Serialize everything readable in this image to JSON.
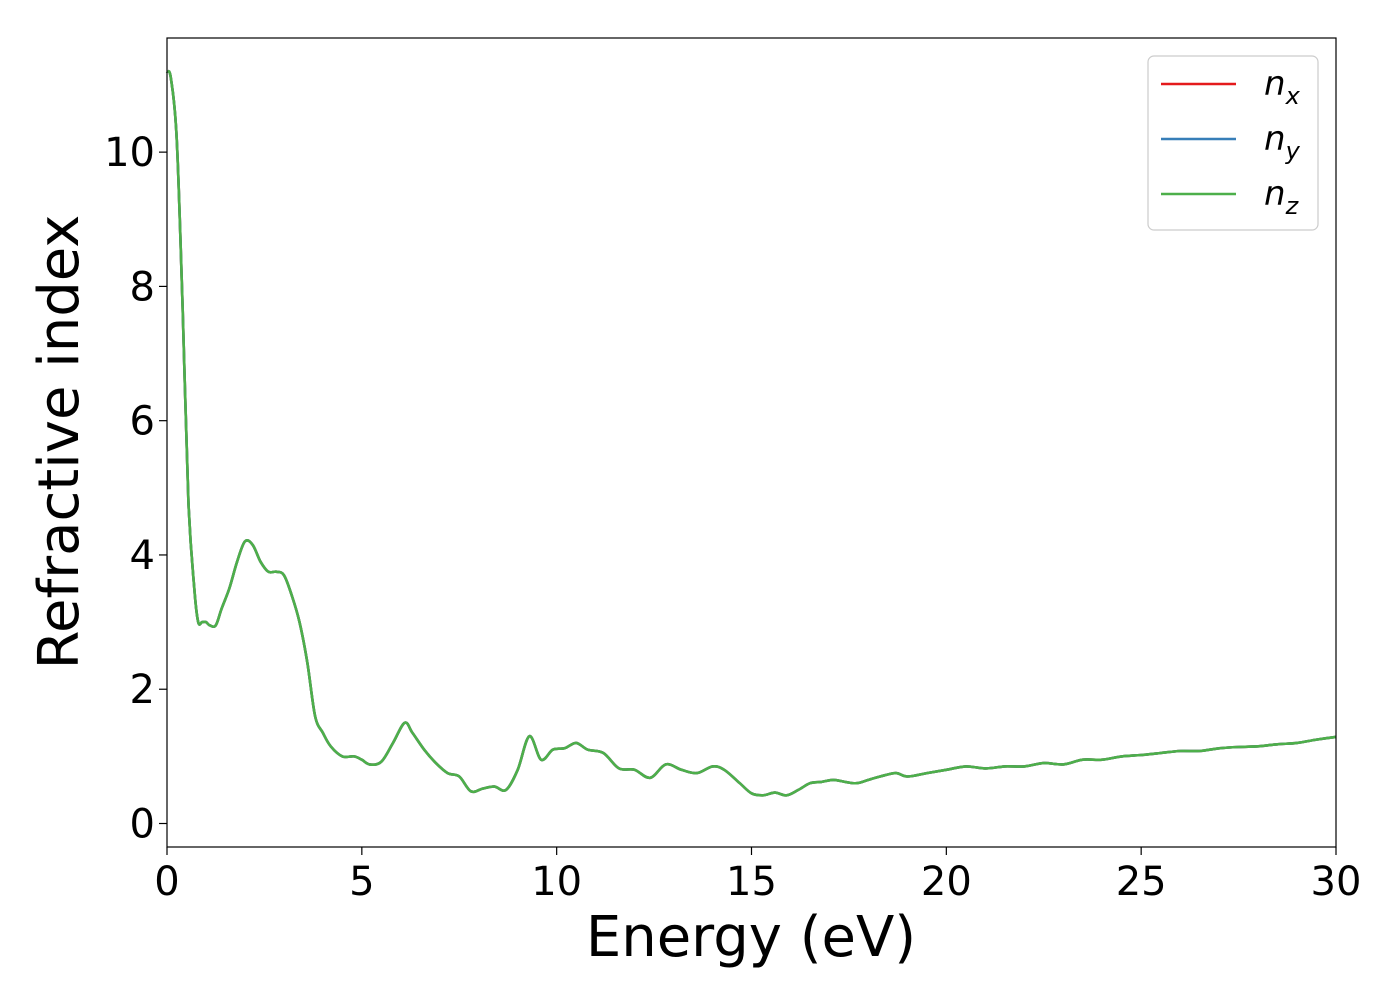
{
  "chart_data": {
    "type": "line",
    "xlabel": "Energy (eV)",
    "ylabel": "Refractive index",
    "xlim": [
      0,
      30
    ],
    "ylim": [
      -0.35,
      11.7
    ],
    "xticks": [
      "0",
      "5",
      "10",
      "15",
      "20",
      "25",
      "30"
    ],
    "yticks": [
      "0",
      "2",
      "4",
      "6",
      "8",
      "10"
    ],
    "grid": false,
    "legend_position": "top-right",
    "x": [
      0,
      0.1,
      0.25,
      0.4,
      0.55,
      0.7,
      0.8,
      0.9,
      1.0,
      1.1,
      1.25,
      1.4,
      1.6,
      1.8,
      2.0,
      2.2,
      2.4,
      2.6,
      2.8,
      3.0,
      3.2,
      3.4,
      3.6,
      3.8,
      4.0,
      4.2,
      4.5,
      4.8,
      5.0,
      5.2,
      5.5,
      5.8,
      6.1,
      6.3,
      6.6,
      6.9,
      7.2,
      7.5,
      7.8,
      8.1,
      8.4,
      8.7,
      9.0,
      9.3,
      9.6,
      9.9,
      10.2,
      10.5,
      10.8,
      11.2,
      11.6,
      12.0,
      12.4,
      12.8,
      13.2,
      13.6,
      14.0,
      14.3,
      14.7,
      15.0,
      15.3,
      15.6,
      15.9,
      16.2,
      16.5,
      16.8,
      17.1,
      17.4,
      17.7,
      18.0,
      18.3,
      18.7,
      19.0,
      19.5,
      20.0,
      20.5,
      21.0,
      21.5,
      22.0,
      22.5,
      23.0,
      23.5,
      24.0,
      24.5,
      25.0,
      25.5,
      26.0,
      26.5,
      27.0,
      27.5,
      28.0,
      28.5,
      29.0,
      29.5,
      30.0
    ],
    "series": [
      {
        "name": "n_x",
        "legend_main": "n",
        "legend_sub": "x",
        "color": "#e41a1c",
        "values": [
          11.2,
          11.1,
          10.2,
          7.7,
          4.8,
          3.5,
          3.0,
          3.0,
          3.0,
          2.95,
          2.95,
          3.2,
          3.5,
          3.9,
          4.2,
          4.15,
          3.9,
          3.75,
          3.75,
          3.7,
          3.4,
          3.0,
          2.4,
          1.6,
          1.35,
          1.15,
          1.0,
          1.0,
          0.95,
          0.88,
          0.92,
          1.2,
          1.5,
          1.35,
          1.1,
          0.9,
          0.75,
          0.7,
          0.48,
          0.52,
          0.55,
          0.5,
          0.8,
          1.3,
          0.95,
          1.1,
          1.12,
          1.2,
          1.1,
          1.05,
          0.82,
          0.8,
          0.68,
          0.88,
          0.8,
          0.75,
          0.85,
          0.8,
          0.6,
          0.45,
          0.42,
          0.46,
          0.42,
          0.5,
          0.6,
          0.62,
          0.65,
          0.62,
          0.6,
          0.65,
          0.7,
          0.75,
          0.7,
          0.75,
          0.8,
          0.85,
          0.82,
          0.85,
          0.85,
          0.9,
          0.88,
          0.95,
          0.95,
          1.0,
          1.02,
          1.05,
          1.08,
          1.08,
          1.12,
          1.14,
          1.15,
          1.18,
          1.2,
          1.25,
          1.29
        ]
      },
      {
        "name": "n_y",
        "legend_main": "n",
        "legend_sub": "y",
        "color": "#377eb8",
        "values": [
          11.2,
          11.1,
          10.2,
          7.7,
          4.8,
          3.5,
          3.0,
          3.0,
          3.0,
          2.95,
          2.95,
          3.2,
          3.5,
          3.9,
          4.2,
          4.15,
          3.9,
          3.75,
          3.75,
          3.7,
          3.4,
          3.0,
          2.4,
          1.6,
          1.35,
          1.15,
          1.0,
          1.0,
          0.95,
          0.88,
          0.92,
          1.2,
          1.5,
          1.35,
          1.1,
          0.9,
          0.75,
          0.7,
          0.48,
          0.52,
          0.55,
          0.5,
          0.8,
          1.3,
          0.95,
          1.1,
          1.12,
          1.2,
          1.1,
          1.05,
          0.82,
          0.8,
          0.68,
          0.88,
          0.8,
          0.75,
          0.85,
          0.8,
          0.6,
          0.45,
          0.42,
          0.46,
          0.42,
          0.5,
          0.6,
          0.62,
          0.65,
          0.62,
          0.6,
          0.65,
          0.7,
          0.75,
          0.7,
          0.75,
          0.8,
          0.85,
          0.82,
          0.85,
          0.85,
          0.9,
          0.88,
          0.95,
          0.95,
          1.0,
          1.02,
          1.05,
          1.08,
          1.08,
          1.12,
          1.14,
          1.15,
          1.18,
          1.2,
          1.25,
          1.29
        ]
      },
      {
        "name": "n_z",
        "legend_main": "n",
        "legend_sub": "z",
        "color": "#4daf4a",
        "values": [
          11.2,
          11.1,
          10.2,
          7.7,
          4.8,
          3.5,
          3.0,
          3.0,
          3.0,
          2.95,
          2.95,
          3.2,
          3.5,
          3.9,
          4.2,
          4.15,
          3.9,
          3.75,
          3.75,
          3.7,
          3.4,
          3.0,
          2.4,
          1.6,
          1.35,
          1.15,
          1.0,
          1.0,
          0.95,
          0.88,
          0.92,
          1.2,
          1.5,
          1.35,
          1.1,
          0.9,
          0.75,
          0.7,
          0.48,
          0.52,
          0.55,
          0.5,
          0.8,
          1.3,
          0.95,
          1.1,
          1.12,
          1.2,
          1.1,
          1.05,
          0.82,
          0.8,
          0.68,
          0.88,
          0.8,
          0.75,
          0.85,
          0.8,
          0.6,
          0.45,
          0.42,
          0.46,
          0.42,
          0.5,
          0.6,
          0.62,
          0.65,
          0.62,
          0.6,
          0.65,
          0.7,
          0.75,
          0.7,
          0.75,
          0.8,
          0.85,
          0.82,
          0.85,
          0.85,
          0.9,
          0.88,
          0.95,
          0.95,
          1.0,
          1.02,
          1.05,
          1.08,
          1.08,
          1.12,
          1.14,
          1.15,
          1.18,
          1.2,
          1.25,
          1.29
        ]
      }
    ]
  }
}
